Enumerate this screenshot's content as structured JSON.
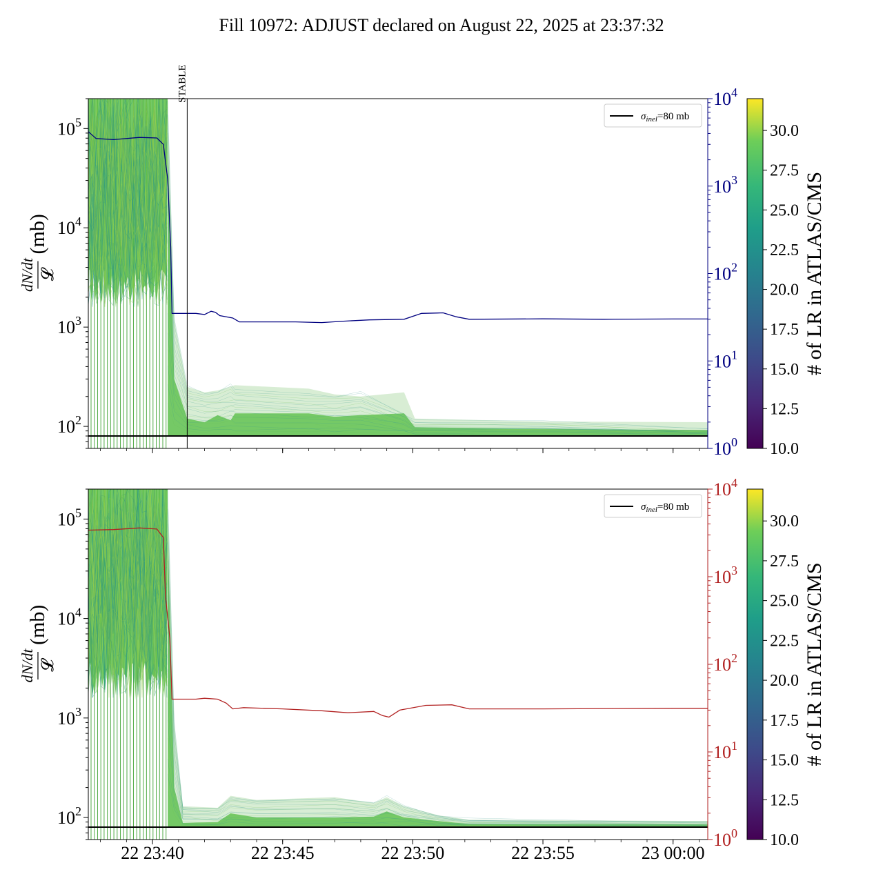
{
  "title": "Fill 10972: ADJUST declared on August 22, 2025 at 23:37:32",
  "colors": {
    "top_right_axis": "#000080",
    "bottom_right_axis": "#b22222",
    "band_main": "#5cbf4a",
    "reference_line": "#000000"
  },
  "chart_data": [
    {
      "type": "line",
      "panel": "top",
      "ylabel_left": "dN/dt / 𝓛 (mb)",
      "yscale_left": "log",
      "ylim_left": [
        60,
        200000
      ],
      "yticks_left": [
        {
          "base": "10",
          "exp": "2",
          "value": 100
        },
        {
          "base": "10",
          "exp": "3",
          "value": 1000
        },
        {
          "base": "10",
          "exp": "4",
          "value": 10000
        },
        {
          "base": "10",
          "exp": "5",
          "value": 100000
        }
      ],
      "yscale_right": "log",
      "ylim_right": [
        1,
        10000
      ],
      "yticks_right": [
        {
          "base": "10",
          "exp": "0",
          "value": 1
        },
        {
          "base": "10",
          "exp": "1",
          "value": 10
        },
        {
          "base": "10",
          "exp": "2",
          "value": 100
        },
        {
          "base": "10",
          "exp": "3",
          "value": 1000
        },
        {
          "base": "10",
          "exp": "4",
          "value": 10000
        }
      ],
      "xlim": [
        "22 23:37:32",
        "23 00:01:20"
      ],
      "xtick_positions": [
        "22 23:40",
        "22 23:45",
        "22 23:50",
        "22 23:55",
        "23 00:00"
      ],
      "reference_line": {
        "label_symbol": "σ",
        "label_sub": "inel",
        "label_rest": "=80 mb",
        "value": 80
      },
      "legend_position": "upper right",
      "annotation": {
        "text": "STABLE",
        "x": "22 23:41:20"
      },
      "colorbar": {
        "label": "# of LR in ATLAS/CMS",
        "range": [
          10.0,
          32.0
        ],
        "ticks": [
          "10.0",
          "12.5",
          "15.0",
          "17.5",
          "20.0",
          "22.5",
          "25.0",
          "27.5",
          "30.0"
        ],
        "colormap": "viridis"
      },
      "right_series": {
        "color": "#000080",
        "points": [
          [
            "22 23:37:32",
            4200
          ],
          [
            "22 23:37:50",
            3500
          ],
          [
            "22 23:38:30",
            3400
          ],
          [
            "22 23:39:30",
            3600
          ],
          [
            "22 23:40:10",
            3550
          ],
          [
            "22 23:40:25",
            3000
          ],
          [
            "22 23:40:35",
            1200
          ],
          [
            "22 23:40:42",
            200
          ],
          [
            "22 23:40:45",
            35
          ],
          [
            "22 23:41:40",
            35
          ],
          [
            "22 23:42:00",
            34
          ],
          [
            "22 23:42:15",
            37
          ],
          [
            "22 23:42:25",
            36
          ],
          [
            "22 23:42:35",
            33
          ],
          [
            "22 23:43:05",
            31
          ],
          [
            "22 23:43:20",
            28
          ],
          [
            "22 23:44:30",
            28
          ],
          [
            "22 23:45:30",
            28
          ],
          [
            "22 23:46:30",
            27.5
          ],
          [
            "22 23:47:20",
            28.5
          ],
          [
            "22 23:48:20",
            29.5
          ],
          [
            "22 23:49:40",
            30
          ],
          [
            "22 23:50:20",
            35
          ],
          [
            "22 23:51:10",
            35.5
          ],
          [
            "22 23:51:40",
            32
          ],
          [
            "22 23:52:10",
            30
          ],
          [
            "22 23:55:00",
            30.3
          ],
          [
            "22 23:57:20",
            30
          ],
          [
            "23 00:00:00",
            30.2
          ],
          [
            "23 00:01:20",
            30.2
          ]
        ]
      },
      "band_median": [
        [
          "22 23:40:35",
          80000
        ],
        [
          "22 23:40:50",
          300
        ],
        [
          "22 23:41:20",
          120
        ],
        [
          "22 23:42:00",
          110
        ],
        [
          "22 23:42:30",
          130
        ],
        [
          "22 23:43:00",
          115
        ],
        [
          "22 23:43:10",
          135
        ],
        [
          "22 23:46:00",
          135
        ],
        [
          "22 23:47:00",
          125
        ],
        [
          "22 23:48:00",
          130
        ],
        [
          "22 23:49:40",
          135
        ],
        [
          "22 23:50:05",
          98
        ],
        [
          "22 23:55:00",
          94
        ],
        [
          "23 00:01:20",
          92
        ]
      ],
      "band_upper": [
        [
          "22 23:40:35",
          200000
        ],
        [
          "22 23:40:50",
          1200
        ],
        [
          "22 23:41:20",
          250
        ],
        [
          "22 23:42:00",
          220
        ],
        [
          "22 23:42:30",
          230
        ],
        [
          "22 23:43:10",
          260
        ],
        [
          "22 23:46:00",
          240
        ],
        [
          "22 23:47:00",
          210
        ],
        [
          "22 23:48:00",
          200
        ],
        [
          "22 23:49:40",
          220
        ],
        [
          "22 23:50:05",
          120
        ],
        [
          "22 23:55:00",
          112
        ],
        [
          "23 00:01:20",
          110
        ]
      ]
    },
    {
      "type": "line",
      "panel": "bottom",
      "ylabel_left": "dN/dt / 𝓛 (mb)",
      "yscale_left": "log",
      "ylim_left": [
        60,
        200000
      ],
      "yticks_left": [
        {
          "base": "10",
          "exp": "2",
          "value": 100
        },
        {
          "base": "10",
          "exp": "3",
          "value": 1000
        },
        {
          "base": "10",
          "exp": "4",
          "value": 10000
        },
        {
          "base": "10",
          "exp": "5",
          "value": 100000
        }
      ],
      "yscale_right": "log",
      "ylim_right": [
        1,
        10000
      ],
      "yticks_right": [
        {
          "base": "10",
          "exp": "0",
          "value": 1
        },
        {
          "base": "10",
          "exp": "1",
          "value": 10
        },
        {
          "base": "10",
          "exp": "2",
          "value": 100
        },
        {
          "base": "10",
          "exp": "3",
          "value": 1000
        },
        {
          "base": "10",
          "exp": "4",
          "value": 10000
        }
      ],
      "xlim": [
        "22 23:37:32",
        "23 00:01:20"
      ],
      "xticks": [
        "22 23:40",
        "22 23:45",
        "22 23:50",
        "22 23:55",
        "23 00:00"
      ],
      "reference_line": {
        "label_symbol": "σ",
        "label_sub": "inel",
        "label_rest": "=80 mb",
        "value": 80
      },
      "legend_position": "upper right",
      "colorbar": {
        "label": "# of LR in ATLAS/CMS",
        "range": [
          10.0,
          32.0
        ],
        "ticks": [
          "10.0",
          "12.5",
          "15.0",
          "17.5",
          "20.0",
          "22.5",
          "25.0",
          "27.5",
          "30.0"
        ],
        "colormap": "viridis"
      },
      "right_series": {
        "color": "#b22222",
        "points": [
          [
            "22 23:37:32",
            3400
          ],
          [
            "22 23:38:30",
            3450
          ],
          [
            "22 23:39:30",
            3600
          ],
          [
            "22 23:40:10",
            3500
          ],
          [
            "22 23:40:25",
            2800
          ],
          [
            "22 23:40:30",
            600
          ],
          [
            "22 23:40:40",
            200
          ],
          [
            "22 23:40:45",
            40
          ],
          [
            "22 23:41:40",
            40
          ],
          [
            "22 23:42:00",
            41
          ],
          [
            "22 23:42:30",
            40
          ],
          [
            "22 23:42:50",
            36
          ],
          [
            "22 23:43:05",
            31
          ],
          [
            "22 23:43:30",
            32
          ],
          [
            "22 23:45:00",
            31
          ],
          [
            "22 23:46:30",
            29.5
          ],
          [
            "22 23:47:30",
            28
          ],
          [
            "22 23:48:30",
            29
          ],
          [
            "22 23:48:50",
            26
          ],
          [
            "22 23:49:05",
            25
          ],
          [
            "22 23:49:30",
            30
          ],
          [
            "22 23:50:30",
            34
          ],
          [
            "22 23:51:30",
            34.5
          ],
          [
            "22 23:52:10",
            31
          ],
          [
            "22 23:55:00",
            31
          ],
          [
            "23 00:00:00",
            31.5
          ],
          [
            "23 00:01:20",
            31.5
          ]
        ]
      },
      "band_median": [
        [
          "22 23:40:35",
          80000
        ],
        [
          "22 23:40:50",
          200
        ],
        [
          "22 23:41:10",
          88
        ],
        [
          "22 23:42:30",
          90
        ],
        [
          "22 23:43:00",
          110
        ],
        [
          "22 23:44:00",
          100
        ],
        [
          "22 23:47:00",
          100
        ],
        [
          "22 23:48:30",
          102
        ],
        [
          "22 23:49:00",
          115
        ],
        [
          "22 23:49:40",
          100
        ],
        [
          "22 23:51:00",
          92
        ],
        [
          "22 23:52:10",
          86
        ],
        [
          "23 00:01:20",
          85
        ]
      ],
      "band_upper": [
        [
          "22 23:40:35",
          200000
        ],
        [
          "22 23:40:50",
          900
        ],
        [
          "22 23:41:10",
          130
        ],
        [
          "22 23:42:30",
          125
        ],
        [
          "22 23:43:00",
          165
        ],
        [
          "22 23:44:00",
          150
        ],
        [
          "22 23:47:00",
          160
        ],
        [
          "22 23:48:30",
          140
        ],
        [
          "22 23:49:00",
          160
        ],
        [
          "22 23:49:40",
          130
        ],
        [
          "22 23:51:00",
          105
        ],
        [
          "22 23:52:10",
          95
        ],
        [
          "23 00:01:20",
          92
        ]
      ]
    }
  ]
}
